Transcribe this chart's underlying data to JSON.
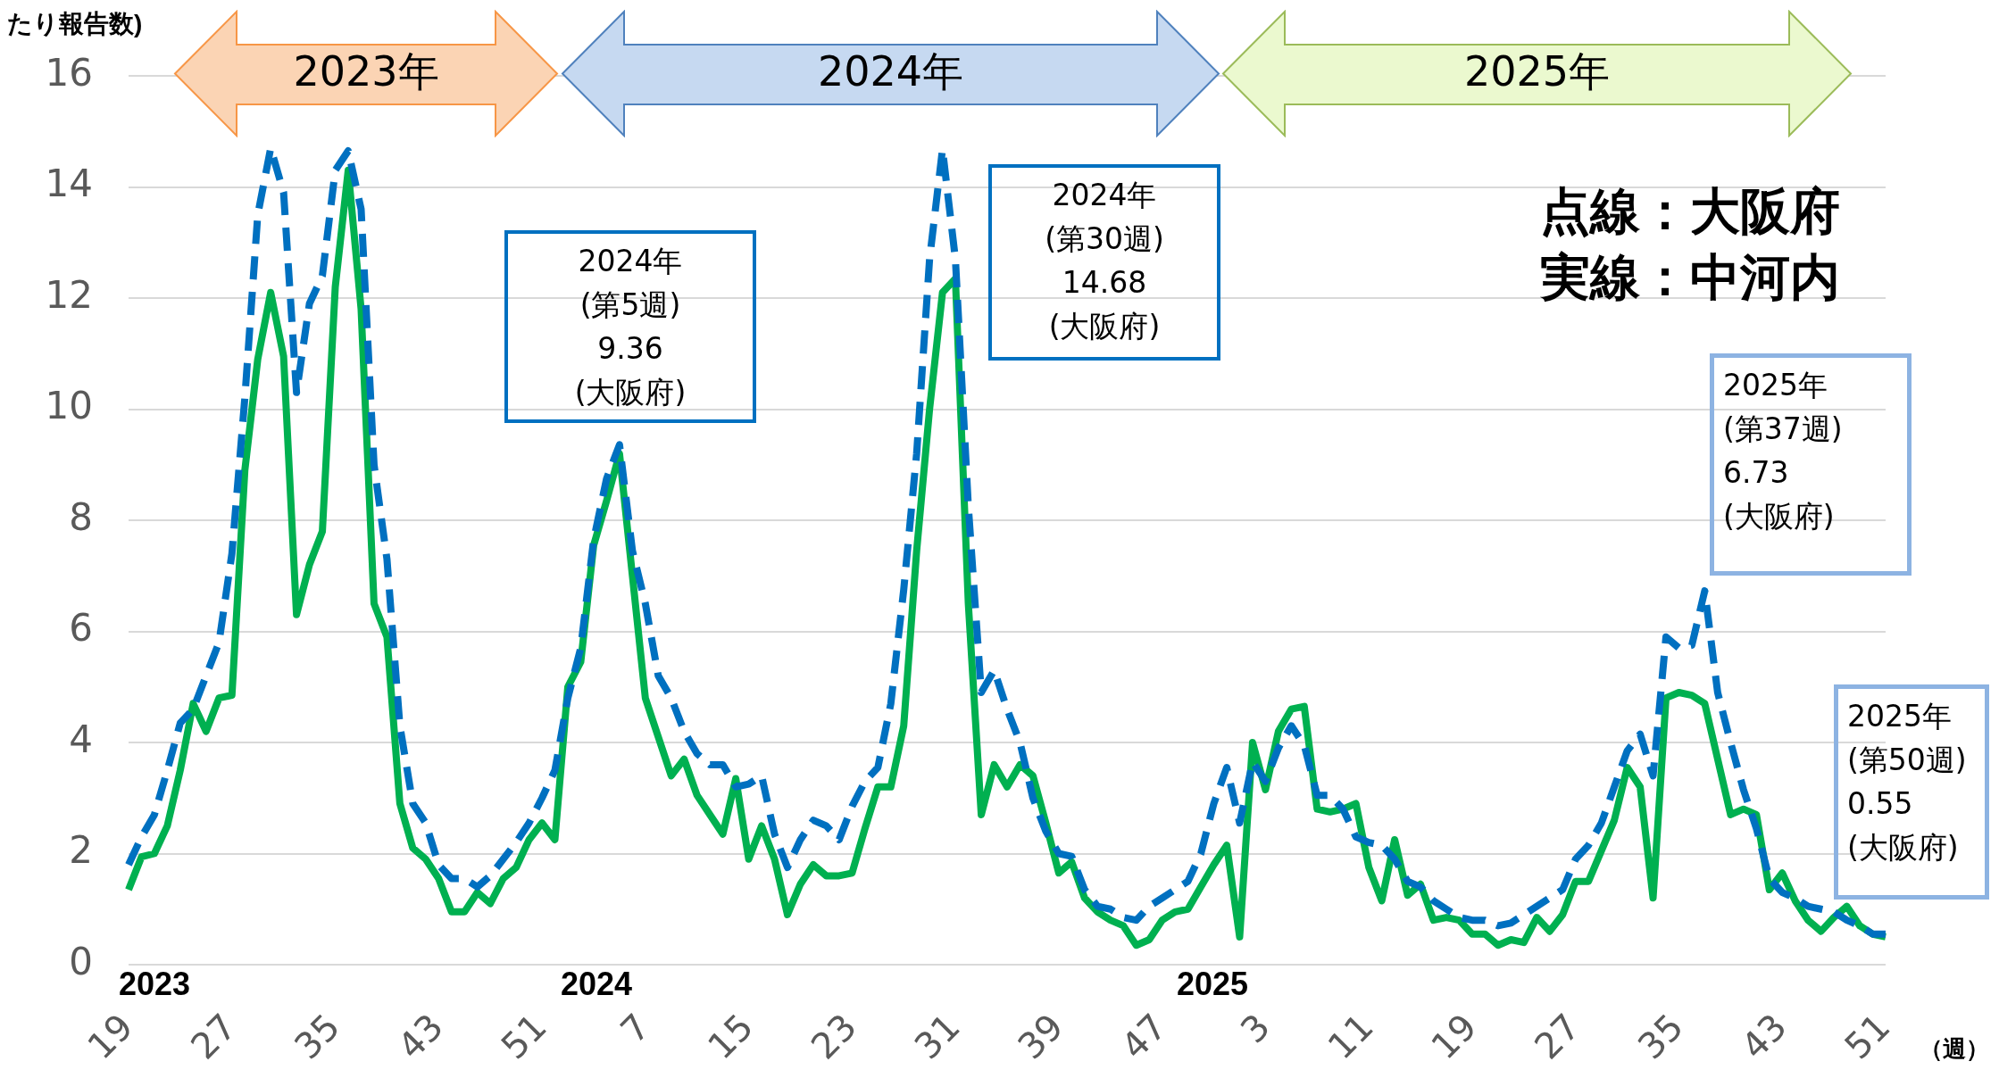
{
  "chart_data": {
    "type": "line",
    "ylabel": "たり報告数)",
    "xlabel": "（週）",
    "categories": [
      "19",
      null,
      null,
      null,
      null,
      null,
      null,
      null,
      "27",
      null,
      null,
      null,
      null,
      null,
      null,
      null,
      "35",
      null,
      null,
      null,
      null,
      null,
      null,
      null,
      "43",
      null,
      null,
      null,
      null,
      null,
      null,
      null,
      "51",
      null,
      null,
      null,
      null,
      null,
      null,
      null,
      "7",
      null,
      null,
      null,
      null,
      null,
      null,
      null,
      "15",
      null,
      null,
      null,
      null,
      null,
      null,
      null,
      "23",
      null,
      null,
      null,
      null,
      null,
      null,
      null,
      "31",
      null,
      null,
      null,
      null,
      null,
      null,
      null,
      "39",
      null,
      null,
      null,
      null,
      null,
      null,
      null,
      "47",
      null,
      null,
      null,
      null,
      null,
      null,
      null,
      "3",
      null,
      null,
      null,
      null,
      null,
      null,
      null,
      "11",
      null,
      null,
      null,
      null,
      null,
      null,
      null,
      "19",
      null,
      null,
      null,
      null,
      null,
      null,
      null,
      "27",
      null,
      null,
      null,
      null,
      null,
      null,
      null,
      "35",
      null,
      null,
      null,
      null,
      null,
      null,
      null,
      "43",
      null,
      null,
      null,
      null,
      null,
      null,
      null,
      "51"
    ],
    "series": [
      {
        "color": "#0070c0",
        "line_style": "dashed",
        "values": [
          1.8,
          2.3,
          2.7,
          3.5,
          4.35,
          4.6,
          5.2,
          5.8,
          7.4,
          10.2,
          13.5,
          14.7,
          13.9,
          10.3,
          11.9,
          12.4,
          14.3,
          14.65,
          13.6,
          9.0,
          7.3,
          4.3,
          2.9,
          2.55,
          1.8,
          1.55,
          1.55,
          1.4,
          1.6,
          1.9,
          2.2,
          2.55,
          3.0,
          3.5,
          4.8,
          5.7,
          7.65,
          8.75,
          9.36,
          7.45,
          6.5,
          5.2,
          4.8,
          4.2,
          3.8,
          3.6,
          3.6,
          3.2,
          3.25,
          3.4,
          2.35,
          1.75,
          2.25,
          2.6,
          2.5,
          2.25,
          2.85,
          3.3,
          3.55,
          4.7,
          6.75,
          9.2,
          12.7,
          14.68,
          12.7,
          8.25,
          4.9,
          5.3,
          4.6,
          4.0,
          3.0,
          2.4,
          2.0,
          1.95,
          1.35,
          1.05,
          1.0,
          0.85,
          0.8,
          1.05,
          1.2,
          1.35,
          1.5,
          2.0,
          2.9,
          3.55,
          2.55,
          3.65,
          3.3,
          3.9,
          4.3,
          3.95,
          3.05,
          3.05,
          2.8,
          2.3,
          2.2,
          2.15,
          1.9,
          1.5,
          1.4,
          1.15,
          1.0,
          0.85,
          0.8,
          0.8,
          0.7,
          0.75,
          0.9,
          1.05,
          1.2,
          1.35,
          1.9,
          2.15,
          2.55,
          3.2,
          3.85,
          4.15,
          3.4,
          5.9,
          5.7,
          5.75,
          6.73,
          4.9,
          4.0,
          3.15,
          2.45,
          1.55,
          1.3,
          1.2,
          1.05,
          1.0,
          0.95,
          0.8,
          0.7,
          0.55,
          0.55
        ]
      },
      {
        "color": "#00b050",
        "line_style": "solid",
        "values": [
          1.35,
          1.94,
          2.0,
          2.5,
          3.5,
          4.7,
          4.2,
          4.8,
          4.85,
          8.9,
          10.9,
          12.1,
          10.95,
          6.3,
          7.2,
          7.8,
          12.2,
          14.3,
          11.8,
          6.5,
          5.9,
          2.9,
          2.1,
          1.9,
          1.55,
          0.95,
          0.95,
          1.3,
          1.1,
          1.55,
          1.75,
          2.25,
          2.55,
          2.25,
          5.0,
          5.45,
          7.55,
          8.35,
          9.2,
          7.0,
          4.8,
          4.1,
          3.4,
          3.7,
          3.05,
          2.7,
          2.35,
          3.35,
          1.9,
          2.5,
          1.9,
          0.9,
          1.45,
          1.8,
          1.6,
          1.6,
          1.65,
          2.45,
          3.2,
          3.2,
          4.3,
          7.45,
          10.0,
          12.1,
          12.35,
          6.5,
          2.7,
          3.6,
          3.2,
          3.6,
          3.4,
          2.55,
          1.65,
          1.85,
          1.2,
          0.95,
          0.8,
          0.7,
          0.35,
          0.45,
          0.8,
          0.95,
          1.0,
          1.4,
          1.8,
          2.15,
          0.5,
          4.0,
          3.15,
          4.2,
          4.6,
          4.65,
          2.8,
          2.75,
          2.8,
          2.9,
          1.75,
          1.15,
          2.25,
          1.25,
          1.45,
          0.8,
          0.85,
          0.8,
          0.55,
          0.55,
          0.35,
          0.45,
          0.4,
          0.85,
          0.6,
          0.9,
          1.5,
          1.5,
          2.05,
          2.6,
          3.55,
          3.2,
          1.2,
          4.8,
          4.9,
          4.85,
          4.7,
          3.7,
          2.7,
          2.8,
          2.7,
          1.35,
          1.65,
          1.15,
          0.8,
          0.6,
          0.85,
          1.05,
          0.7,
          0.55,
          0.5
        ]
      }
    ],
    "ylim": [
      0,
      16
    ],
    "yticks": [
      0,
      2,
      4,
      6,
      8,
      10,
      12,
      14,
      16
    ],
    "grid": "y",
    "legend": false,
    "marker": "none",
    "annotations": [
      "2023年",
      "2024年",
      "2025年",
      "2024年\n(第5週)\n9.36\n(大阪府)",
      "2024年\n(第30週)\n14.68\n(大阪府)",
      "2025年\n(第37週)\n6.73\n(大阪府)",
      "2025年\n(第50週)\n0.55\n(大阪府)",
      "点線：大阪府",
      "実線：中河内",
      "2023",
      "2024",
      "2025"
    ]
  }
}
